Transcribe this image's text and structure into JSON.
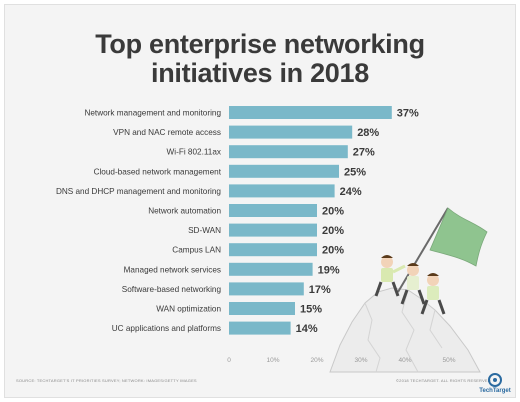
{
  "title_line1": "Top enterprise networking",
  "title_line2": "initiatives in 2018",
  "source": "SOURCE: TECHTARGET'S IT PRIORITIES SURVEY; NETWORK: IMAGES/GETTY IMAGES",
  "copyright": "©2018 TECHTARGET. ALL RIGHTS RESERVED",
  "brand": "TechTarget",
  "colors": {
    "bar": "#7ab8c9",
    "text": "#3a3a3a",
    "flag": "#8fc48f",
    "grid": "#d0d0d0"
  },
  "illustration": "businessmen-climbing-mountain-with-flag",
  "chart_data": {
    "type": "bar",
    "orientation": "horizontal",
    "title": "Top enterprise networking initiatives in 2018",
    "categories": [
      "Network management and monitoring",
      "VPN and NAC remote access",
      "Wi-Fi 802.11ax",
      "Cloud-based network management",
      "DNS and DHCP management and monitoring",
      "Network automation",
      "SD-WAN",
      "Campus LAN",
      "Managed network services",
      "Software-based networking",
      "WAN optimization",
      "UC applications and platforms"
    ],
    "values": [
      37,
      28,
      27,
      25,
      24,
      20,
      20,
      20,
      19,
      17,
      15,
      14
    ],
    "value_labels": [
      "37%",
      "28%",
      "27%",
      "25%",
      "24%",
      "20%",
      "20%",
      "20%",
      "19%",
      "17%",
      "15%",
      "14%"
    ],
    "xlim": [
      0,
      50
    ],
    "xticks": [
      0,
      10,
      20,
      30,
      40,
      50
    ],
    "xtick_labels": [
      "0",
      "10%",
      "20%",
      "30%",
      "40%",
      "50%"
    ],
    "grid": false,
    "legend": "none"
  }
}
